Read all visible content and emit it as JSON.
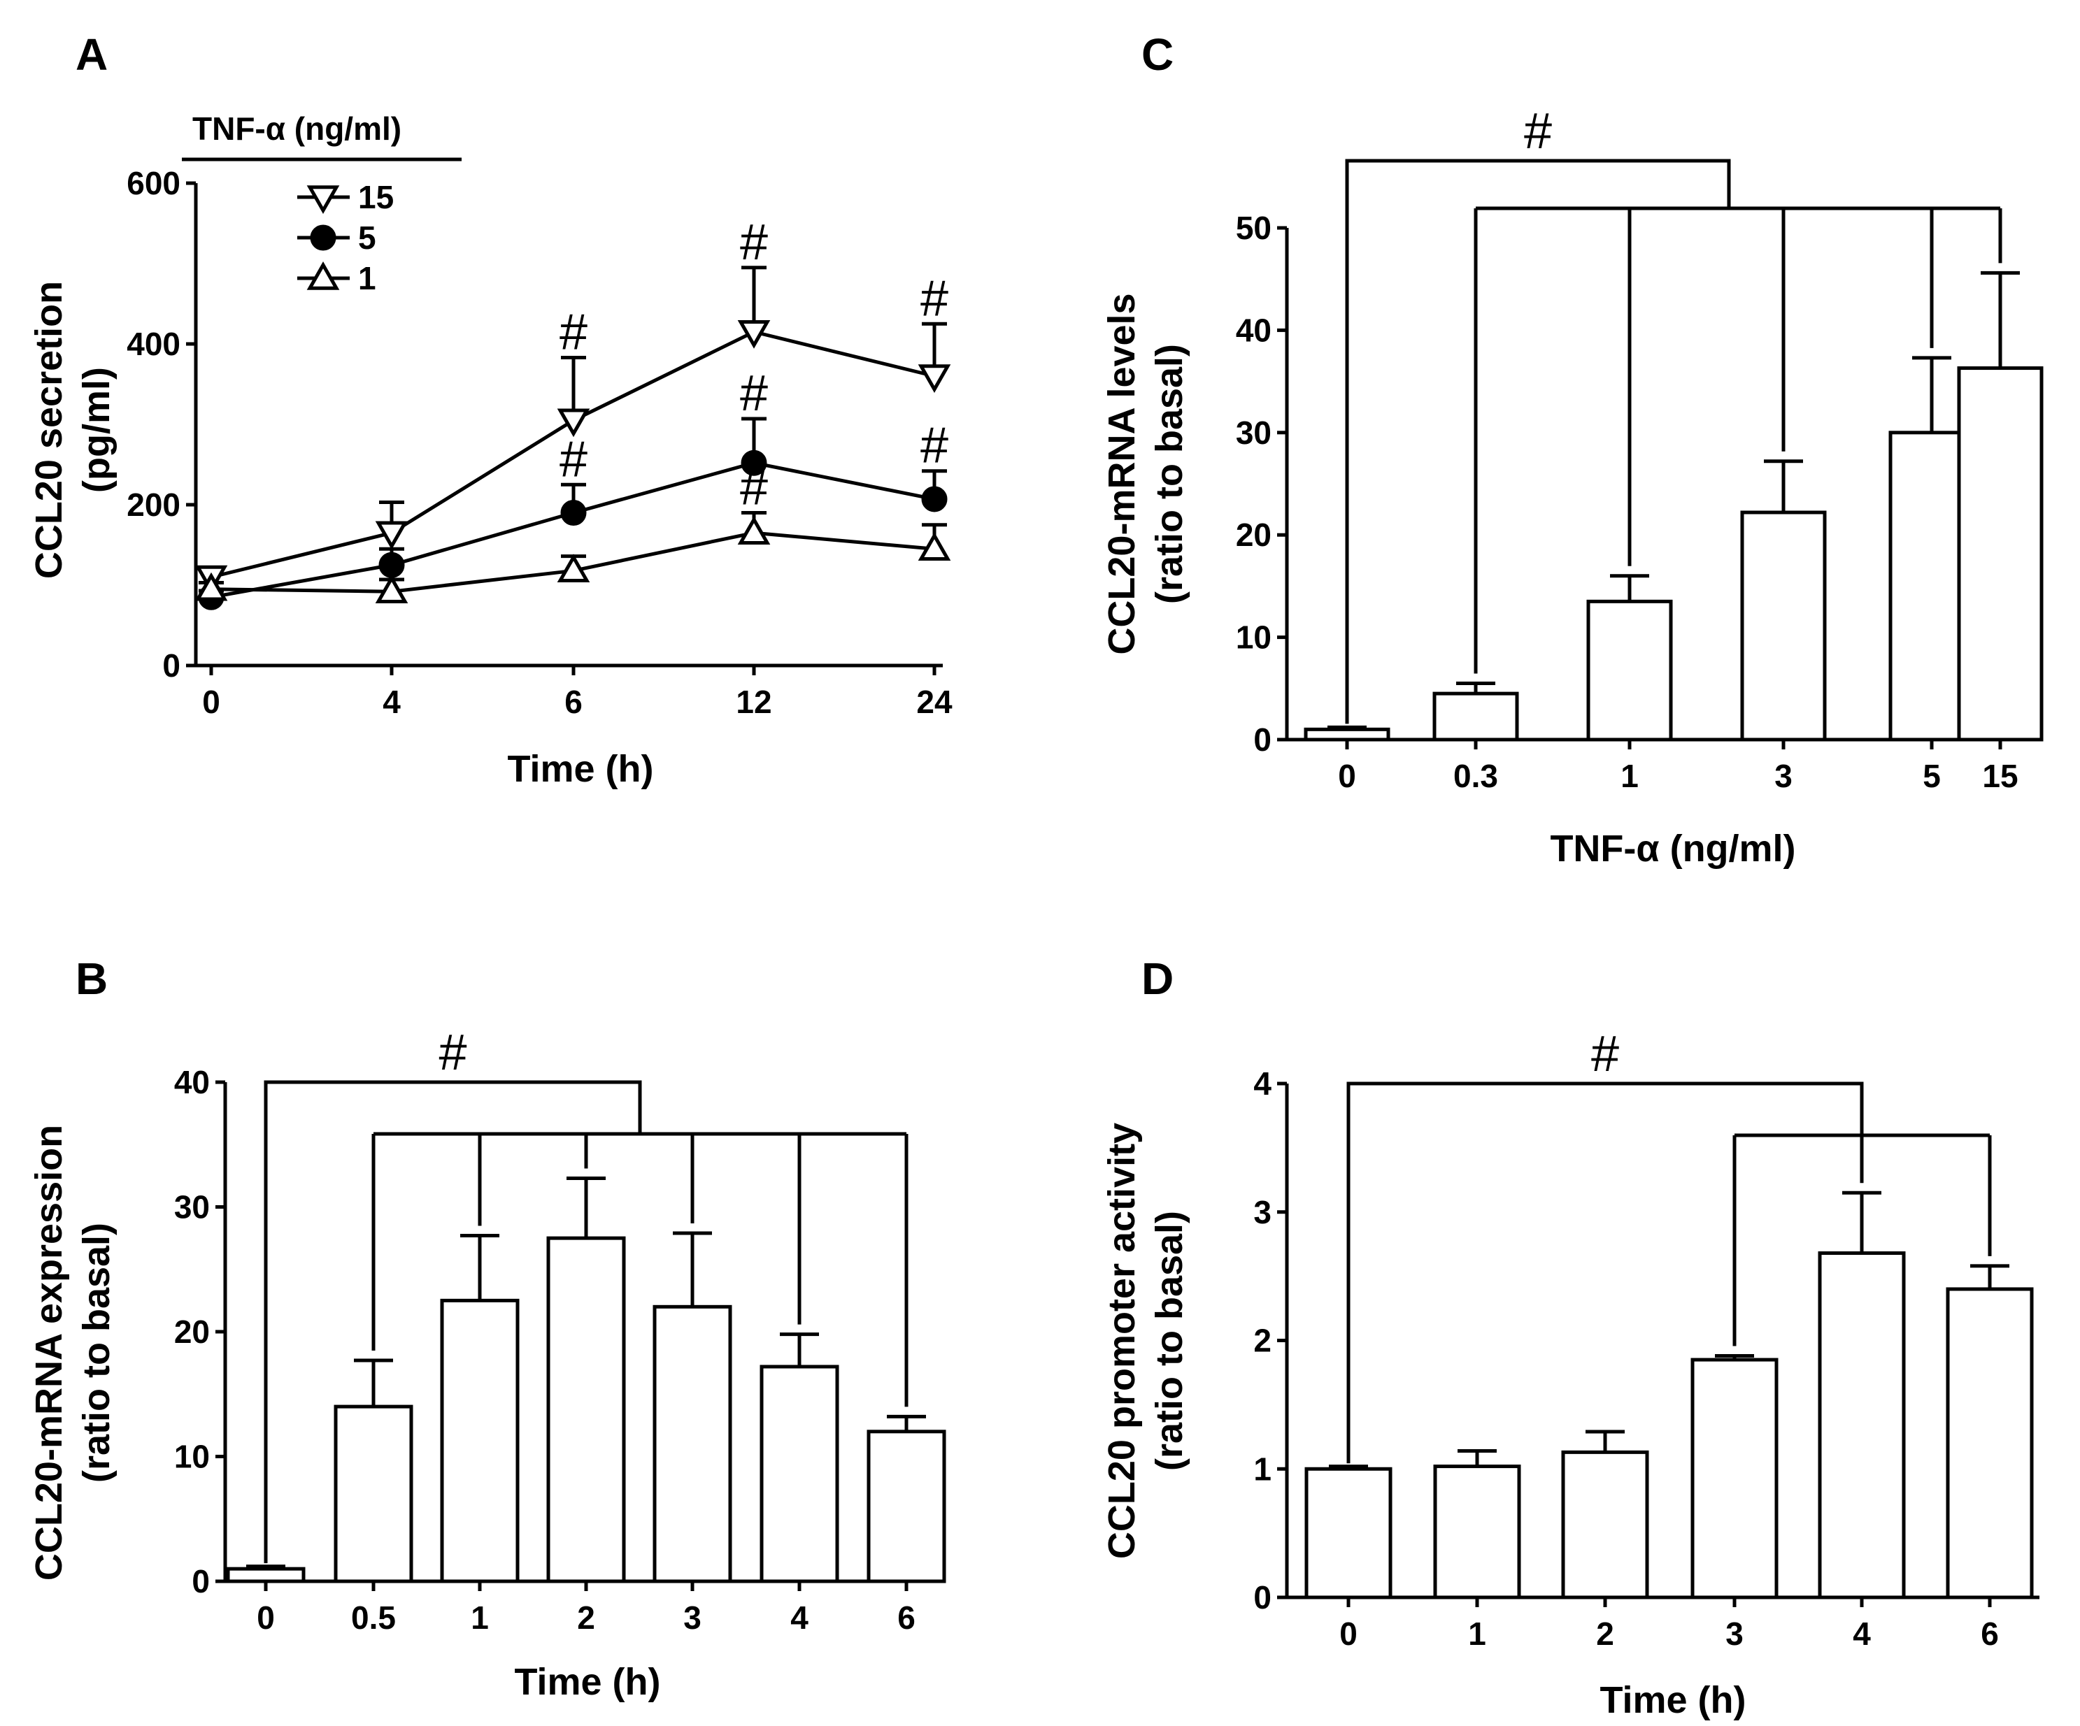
{
  "chart_data": [
    {
      "panel": "A",
      "type": "line",
      "xlabel": "Time (h)",
      "ylabel": [
        "CCL20 secretion",
        "(pg/ml)"
      ],
      "ylim": [
        0,
        600
      ],
      "yticks": [
        0,
        200,
        400,
        600
      ],
      "categories": [
        "0",
        "4",
        "6",
        "12",
        "24"
      ],
      "legend_title": "TNF-α (ng/ml)",
      "series": [
        {
          "name": "15",
          "marker": "triangle-down-open",
          "values": [
            110,
            165,
            305,
            415,
            360
          ],
          "errors": [
            10,
            38,
            78,
            80,
            65
          ],
          "sig": [
            false,
            false,
            true,
            true,
            true
          ]
        },
        {
          "name": "5",
          "marker": "circle-filled",
          "values": [
            85,
            125,
            190,
            252,
            207
          ],
          "errors": [
            8,
            20,
            35,
            55,
            35
          ],
          "sig": [
            false,
            false,
            true,
            true,
            true
          ]
        },
        {
          "name": "1",
          "marker": "triangle-up-open",
          "values": [
            95,
            92,
            118,
            165,
            145
          ],
          "errors": [
            8,
            15,
            18,
            25,
            30
          ],
          "sig": [
            false,
            false,
            false,
            true,
            false
          ]
        }
      ],
      "sig_label": "#"
    },
    {
      "panel": "B",
      "type": "bar",
      "xlabel": "Time (h)",
      "ylabel": [
        "CCL20-mRNA expression",
        "(ratio to basal)"
      ],
      "ylim": [
        0,
        40
      ],
      "yticks": [
        0,
        10,
        20,
        30,
        40
      ],
      "categories": [
        "0",
        "0.5",
        "1",
        "2",
        "3",
        "4",
        "6"
      ],
      "values": [
        1,
        14,
        22.5,
        27.5,
        22,
        17.2,
        12
      ],
      "errors": [
        0.2,
        3.7,
        5.2,
        4.8,
        5.9,
        2.6,
        1.2
      ],
      "sig_label": "#"
    },
    {
      "panel": "C",
      "type": "bar",
      "xlabel": "TNF-α (ng/ml)",
      "ylabel": [
        "CCL20-mRNA levels",
        "(ratio to basal)"
      ],
      "ylim": [
        0,
        50
      ],
      "yticks": [
        0,
        10,
        20,
        30,
        40,
        50
      ],
      "categories": [
        "0",
        "0.3",
        "1",
        "3",
        "5",
        "15"
      ],
      "values": [
        1,
        4.5,
        13.5,
        22.2,
        30,
        36.3
      ],
      "errors": [
        0.2,
        1.0,
        2.5,
        5.0,
        7.3,
        9.3
      ],
      "sig_label": "#"
    },
    {
      "panel": "D",
      "type": "bar",
      "xlabel": "Time (h)",
      "ylabel": [
        "CCL20 promoter activity",
        "(ratio to basal)"
      ],
      "ylim": [
        0,
        4
      ],
      "yticks": [
        0,
        1,
        2,
        3,
        4
      ],
      "categories": [
        "0",
        "1",
        "2",
        "3",
        "4",
        "6"
      ],
      "values": [
        1.0,
        1.02,
        1.13,
        1.85,
        2.68,
        2.4
      ],
      "errors": [
        0.02,
        0.12,
        0.16,
        0.03,
        0.47,
        0.18
      ],
      "sig_label": "#"
    }
  ]
}
